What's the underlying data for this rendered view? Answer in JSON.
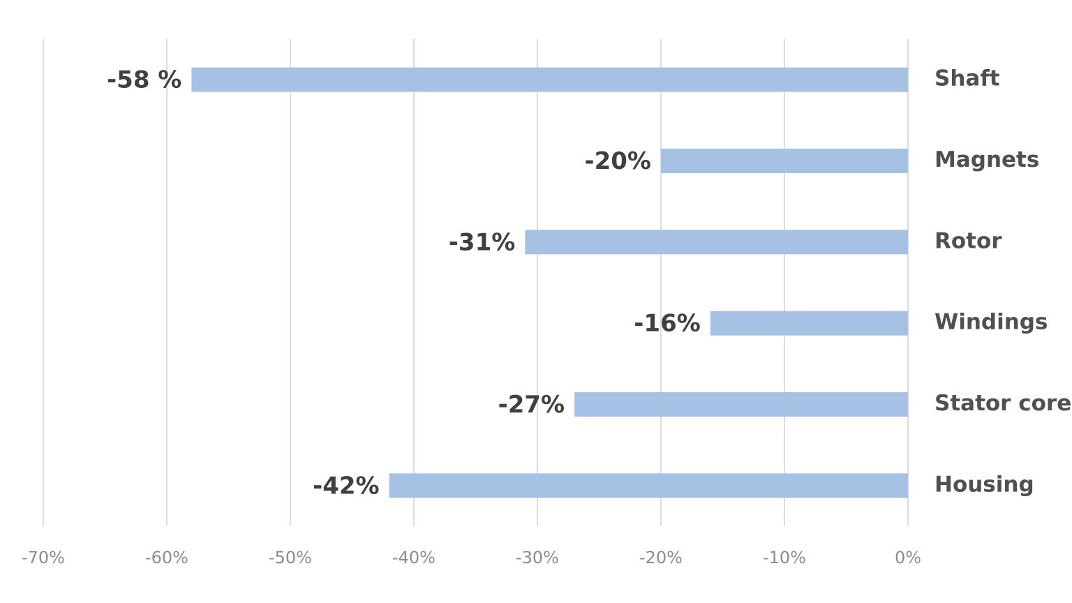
{
  "chart_data": {
    "type": "barh",
    "categories": [
      "Shaft",
      "Magnets",
      "Rotor",
      "Windings",
      "Stator core",
      "Housing"
    ],
    "values": [
      -58,
      -20,
      -31,
      -16,
      -27,
      -42
    ],
    "value_labels": [
      "-58 %",
      "-20%",
      "-31%",
      "-16%",
      "-27%",
      "-42%"
    ],
    "color": "#a6c1e3",
    "xlim": [
      -70,
      0
    ],
    "xticks": [
      {
        "value": -70,
        "label": "-70%"
      },
      {
        "value": -60,
        "label": "-60%"
      },
      {
        "value": -50,
        "label": "-50%"
      },
      {
        "value": -40,
        "label": "-40%"
      },
      {
        "value": -30,
        "label": "-30%"
      },
      {
        "value": -20,
        "label": "-20%"
      },
      {
        "value": -10,
        "label": "-10%"
      },
      {
        "value": 0,
        "label": "0%"
      }
    ],
    "grid": true
  }
}
